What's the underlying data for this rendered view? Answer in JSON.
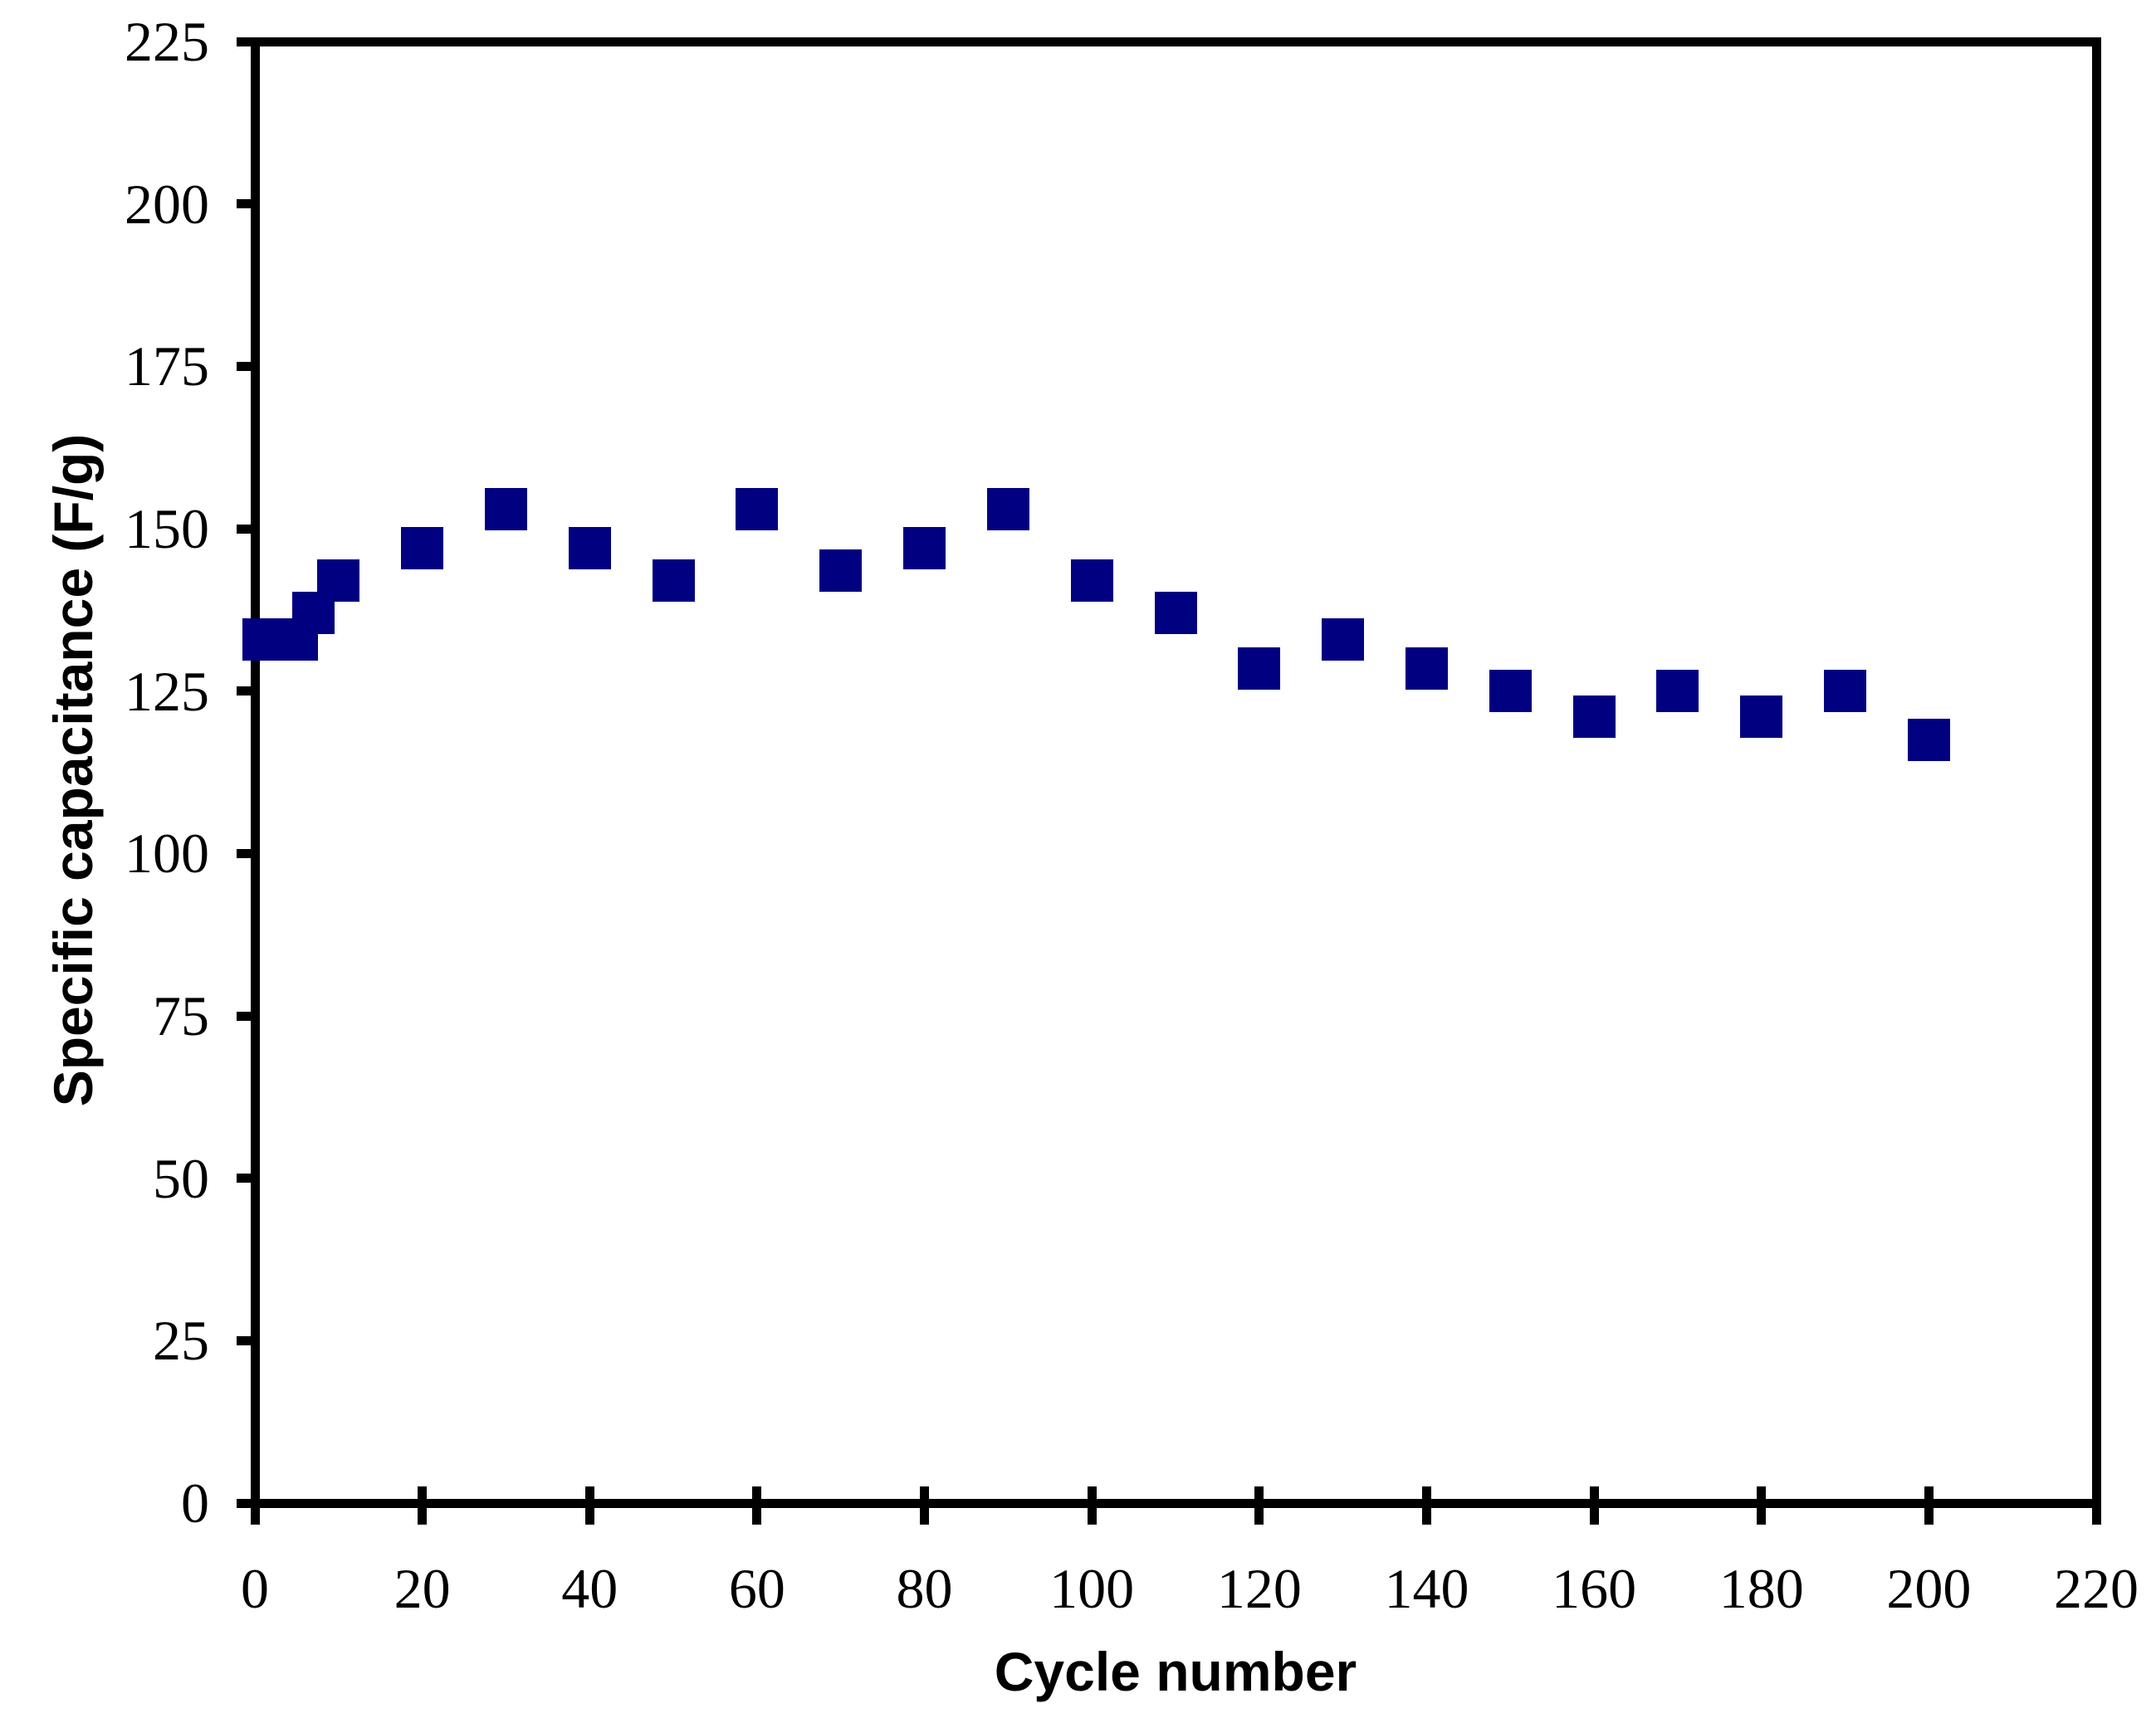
{
  "chart_data": {
    "type": "scatter",
    "title": "",
    "xlabel": "Cycle number",
    "ylabel": "Specific capacitance (F/g)",
    "xlim": [
      0,
      220
    ],
    "ylim": [
      0,
      225
    ],
    "xticks": [
      0,
      20,
      40,
      60,
      80,
      100,
      120,
      140,
      160,
      180,
      200,
      220
    ],
    "yticks": [
      0,
      25,
      50,
      75,
      100,
      125,
      150,
      175,
      200,
      225
    ],
    "grid": false,
    "legend": false,
    "plot_border": "full-box",
    "axis_color": "#000000",
    "background_color": "#ffffff",
    "series": [
      {
        "name": "specific capacitance",
        "marker": "filled-square",
        "marker_color": "#000080",
        "marker_size_px": 51,
        "points": [
          [
            1,
            133
          ],
          [
            5,
            133
          ],
          [
            7,
            137
          ],
          [
            10,
            142
          ],
          [
            20,
            147
          ],
          [
            30,
            153
          ],
          [
            40,
            147
          ],
          [
            50,
            142
          ],
          [
            60,
            153
          ],
          [
            70,
            143.5
          ],
          [
            80,
            147
          ],
          [
            90,
            153
          ],
          [
            100,
            142
          ],
          [
            110,
            137
          ],
          [
            120,
            128.5
          ],
          [
            130,
            133
          ],
          [
            140,
            128.5
          ],
          [
            150,
            125
          ],
          [
            160,
            121
          ],
          [
            170,
            125
          ],
          [
            180,
            121
          ],
          [
            190,
            125
          ],
          [
            200,
            117.5
          ]
        ]
      }
    ]
  }
}
